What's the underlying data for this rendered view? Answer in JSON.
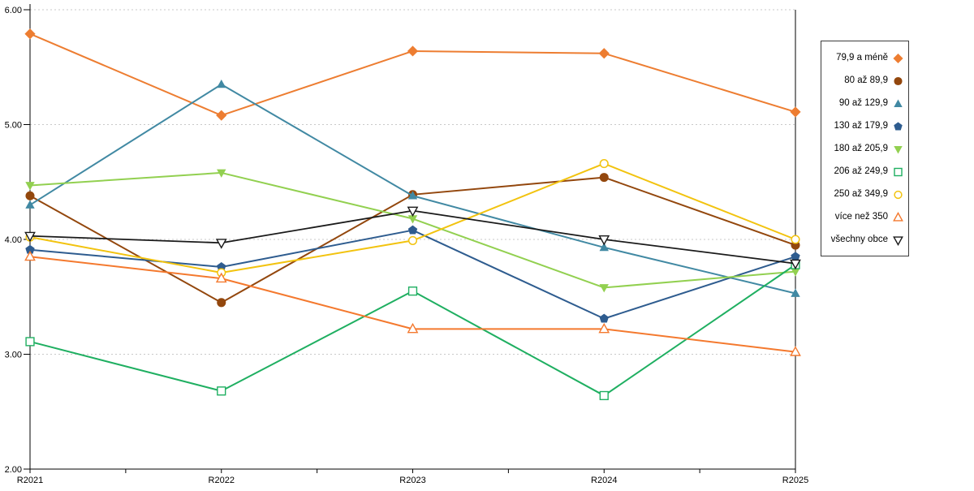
{
  "chart_data": {
    "type": "line",
    "title": "",
    "xlabel": "",
    "ylabel": "",
    "categories": [
      "R2021",
      "R2022",
      "R2023",
      "R2024",
      "R2025"
    ],
    "y_axis": {
      "min": 2,
      "max": 6,
      "ticks": [
        {
          "value": 6,
          "label": "6.00"
        },
        {
          "value": 5,
          "label": "5.00"
        },
        {
          "value": 4,
          "label": "4.00"
        },
        {
          "value": 3,
          "label": "3.00"
        },
        {
          "value": 2,
          "label": "2.00"
        }
      ]
    },
    "gridlines": {
      "horizontal_dashed_at": [
        3,
        4,
        5,
        6
      ],
      "color": "#C9C9C9"
    },
    "legend": {
      "position": "right-outside",
      "bordered": true
    },
    "axis_color": "#000000",
    "series": [
      {
        "name": "79,9 a méně",
        "color": "#ED7D31",
        "marker": "diamond-filled",
        "values": [
          5.79,
          5.08,
          5.64,
          5.62,
          5.11
        ]
      },
      {
        "name": "80 až 89,9",
        "color": "#93470D",
        "marker": "circle-filled",
        "values": [
          4.38,
          3.45,
          4.39,
          4.54,
          3.95
        ]
      },
      {
        "name": "90 až 129,9",
        "color": "#4189A3",
        "marker": "triangle-up-filled",
        "values": [
          4.3,
          5.35,
          4.38,
          3.93,
          3.53
        ]
      },
      {
        "name": "130 až 179,9",
        "color": "#2E5C8F",
        "marker": "pentagon-filled",
        "values": [
          3.91,
          3.76,
          4.08,
          3.31,
          3.85
        ]
      },
      {
        "name": "180 až 205,9",
        "color": "#92D050",
        "marker": "triangle-down-filled",
        "values": [
          4.47,
          4.58,
          4.18,
          3.58,
          3.72
        ]
      },
      {
        "name": "206 až 249,9",
        "color": "#1FAF61",
        "marker": "square-open",
        "values": [
          3.11,
          2.68,
          3.55,
          2.64,
          3.78
        ]
      },
      {
        "name": "250 až 349,9",
        "color": "#F2C30F",
        "marker": "circle-open",
        "values": [
          4.02,
          3.71,
          3.99,
          4.66,
          4.0
        ]
      },
      {
        "name": "více než 350",
        "color": "#F4792E",
        "marker": "triangle-up-open",
        "values": [
          3.85,
          3.66,
          3.22,
          3.22,
          3.02
        ]
      },
      {
        "name": "všechny obce",
        "color": "#1A1A1A",
        "marker": "triangle-down-open",
        "values": [
          4.03,
          3.97,
          4.25,
          4.0,
          3.79
        ]
      }
    ]
  }
}
